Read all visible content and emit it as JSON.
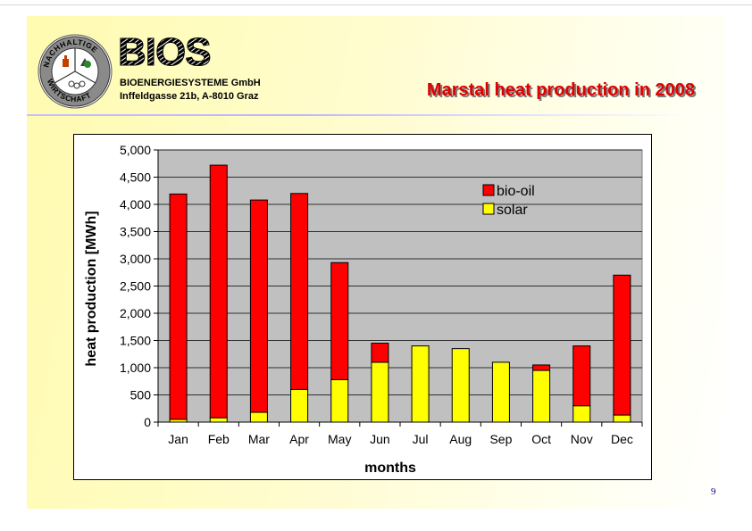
{
  "header": {
    "logo_seal_text": "NACHHALTIGE WIRTSCHAFT",
    "logo_text": "BIOS",
    "company_name": "BIOENERGIESYSTEME GmbH",
    "company_address": "Inffeldgasse 21b, A-8010 Graz",
    "slide_title": "Marstal heat production in 2008"
  },
  "footer": {
    "page_number": "9"
  },
  "colors": {
    "bio_oil": "#ff0000",
    "solar": "#ffff00",
    "plot_bg": "#c0c0c0",
    "title": "#e00000"
  },
  "chart_data": {
    "type": "bar",
    "stacked": true,
    "title": "",
    "xlabel": "months",
    "ylabel": "heat production [MWh]",
    "ylim": [
      0,
      5000
    ],
    "yticks": [
      0,
      500,
      1000,
      1500,
      2000,
      2500,
      3000,
      3500,
      4000,
      4500,
      5000
    ],
    "ytick_labels": [
      "0",
      "500",
      "1,000",
      "1,500",
      "2,000",
      "2,500",
      "3,000",
      "3,500",
      "4,000",
      "4,500",
      "5,000"
    ],
    "grid": true,
    "legend_position": "top-right",
    "categories": [
      "Jan",
      "Feb",
      "Mar",
      "Apr",
      "May",
      "Jun",
      "Jul",
      "Aug",
      "Sep",
      "Oct",
      "Nov",
      "Dec"
    ],
    "series": [
      {
        "name": "solar",
        "color": "#ffff00",
        "values": [
          50,
          80,
          180,
          600,
          780,
          1100,
          1400,
          1350,
          1100,
          950,
          300,
          130
        ]
      },
      {
        "name": "bio-oil",
        "color": "#ff0000",
        "values": [
          4140,
          4640,
          3900,
          3600,
          2150,
          350,
          0,
          0,
          0,
          100,
          1100,
          2570
        ]
      }
    ],
    "legend_order": [
      "bio-oil",
      "solar"
    ]
  }
}
